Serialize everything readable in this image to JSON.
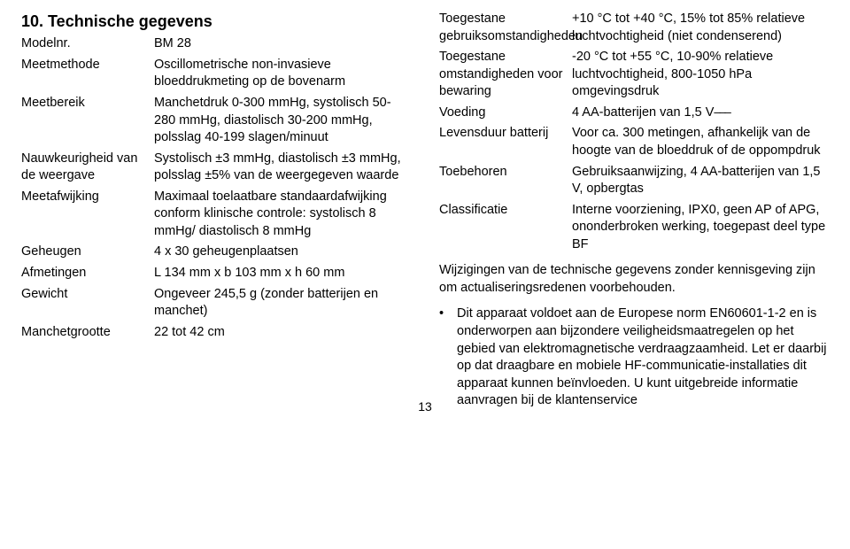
{
  "heading": "10. Technische gegevens",
  "left": [
    {
      "label": "Modelnr.",
      "value": "BM 28"
    },
    {
      "label": "Meetmethode",
      "value": "Oscillometrische non-invasieve bloeddrukmeting op de bovenarm"
    },
    {
      "label": "Meetbereik",
      "value": "Manchetdruk 0-300 mmHg, systolisch 50-280 mmHg, diastolisch 30-200 mmHg, polsslag 40-199 slagen/minuut"
    },
    {
      "label": "Nauwkeurigheid van de weergave",
      "value": "Systolisch ±3 mmHg, diastolisch ±3 mmHg, polsslag ±5% van de weergegeven waarde"
    },
    {
      "label": "Meetafwijking",
      "value": "Maximaal toelaatbare standaardafwijking conform klinische controle: systolisch 8 mmHg/ diastolisch 8 mmHg"
    },
    {
      "label": "Geheugen",
      "value": "4 x 30 geheugenplaatsen"
    },
    {
      "label": "Afmetingen",
      "value": "L 134 mm x b 103 mm x h 60 mm"
    },
    {
      "label": "Gewicht",
      "value": "Ongeveer 245,5 g (zonder batterijen en manchet)"
    },
    {
      "label": "Manchetgrootte",
      "value": "22 tot 42 cm"
    }
  ],
  "right": [
    {
      "label": "Toegestane gebruiksomstandigheden",
      "value": "+10 °C tot +40 °C, 15% tot 85% relatieve luchtvochtigheid (niet condenserend)"
    },
    {
      "label": "Toegestane omstandigheden voor bewaring",
      "value": "-20 °C tot +55 °C, 10-90% relatieve luchtvochtigheid, 800-1050 hPa omgevingsdruk"
    },
    {
      "label": "Voeding",
      "value": "4 AA-batterijen van 1,5 V",
      "battery": true
    },
    {
      "label": "Levensduur batterij",
      "value": "Voor ca. 300 metingen, afhankelijk van de hoogte van de bloeddruk of de oppompdruk"
    },
    {
      "label": "Toebehoren",
      "value": "Gebruiksaanwijzing, 4 AA-batterijen van 1,5 V, opbergtas"
    },
    {
      "label": "Classificatie",
      "value": "Interne voorziening, IPX0, geen AP of APG, ononderbroken werking, toegepast deel type BF"
    }
  ],
  "note": "Wijzigingen van de technische gegevens zonder kennisgeving zijn om actualiseringsredenen voorbehouden.",
  "bullet": "Dit apparaat voldoet aan de Europese norm EN60601-1-2 en is onderworpen aan bijzondere veiligheidsmaatregelen op het gebied van elektromagnetische verdraagzaamheid. Let er daarbij op dat draagbare en mobiele HF-communicatie-installaties dit apparaat kunnen beïnvloeden. U kunt uitgebreide informatie aanvragen bij de klantenservice",
  "pagenum": "13"
}
